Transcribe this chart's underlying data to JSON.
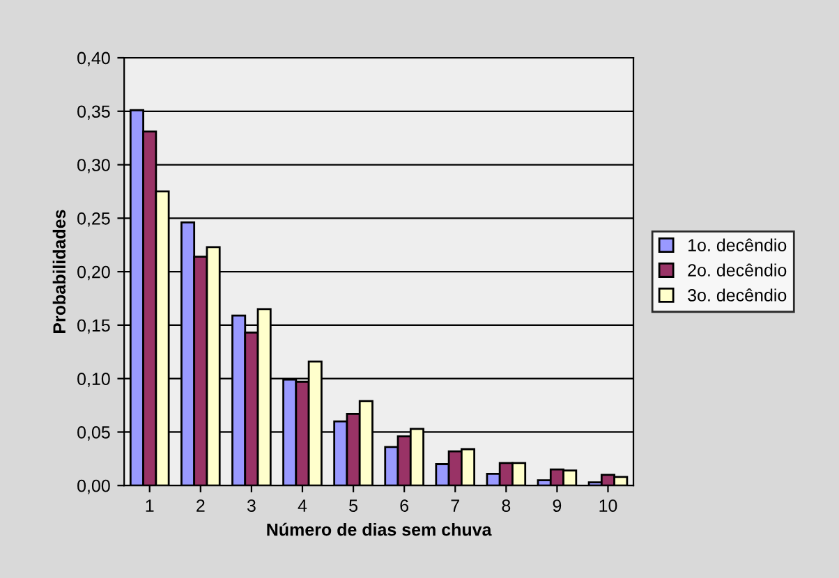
{
  "chart_data": {
    "type": "bar",
    "xlabel": "Número de dias sem chuva",
    "ylabel": "Probabilidades",
    "categories": [
      "1",
      "2",
      "3",
      "4",
      "5",
      "6",
      "7",
      "8",
      "9",
      "10"
    ],
    "series": [
      {
        "name": "1o. decêndio",
        "color": "#9999ff",
        "values": [
          0.351,
          0.246,
          0.159,
          0.099,
          0.06,
          0.036,
          0.02,
          0.011,
          0.005,
          0.003
        ]
      },
      {
        "name": "2o. decêndio",
        "color": "#993366",
        "values": [
          0.331,
          0.214,
          0.143,
          0.097,
          0.067,
          0.046,
          0.032,
          0.021,
          0.015,
          0.01
        ]
      },
      {
        "name": "3o. decêndio",
        "color": "#ffffcc",
        "values": [
          0.275,
          0.223,
          0.165,
          0.116,
          0.079,
          0.053,
          0.034,
          0.021,
          0.014,
          0.008
        ]
      }
    ],
    "ylim": [
      0,
      0.4
    ],
    "yticks": [
      {
        "value": 0,
        "label": "0,00"
      },
      {
        "value": 0.05,
        "label": "0,05"
      },
      {
        "value": 0.1,
        "label": "0,10"
      },
      {
        "value": 0.15,
        "label": "0,15"
      },
      {
        "value": 0.2,
        "label": "0,20"
      },
      {
        "value": 0.25,
        "label": "0,25"
      },
      {
        "value": 0.3,
        "label": "0,30"
      },
      {
        "value": 0.35,
        "label": "0,35"
      },
      {
        "value": 0.4,
        "label": "0,40"
      }
    ],
    "grid": "y",
    "legend": "right"
  }
}
